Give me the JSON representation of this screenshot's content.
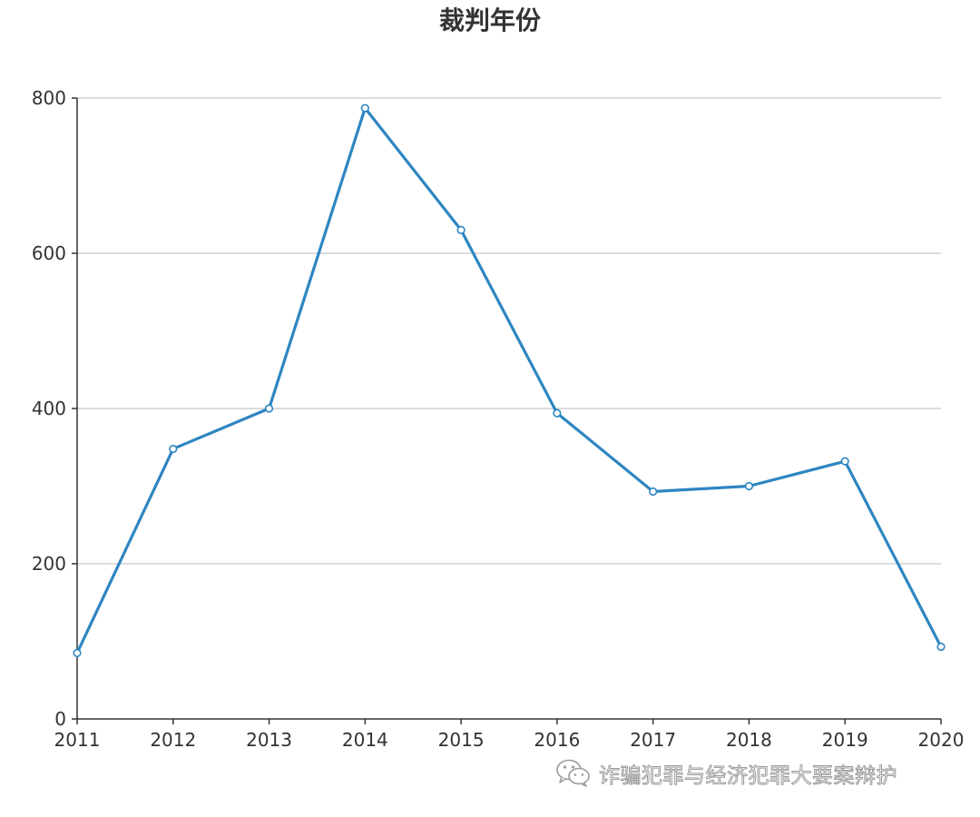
{
  "chart_data": {
    "type": "line",
    "title": "裁判年份",
    "x": [
      "2011",
      "2012",
      "2013",
      "2014",
      "2015",
      "2016",
      "2017",
      "2018",
      "2019",
      "2020"
    ],
    "series": [
      {
        "values": [
          85,
          348,
          400,
          787,
          630,
          394,
          293,
          300,
          332,
          93
        ]
      }
    ],
    "ylim": [
      0,
      800
    ],
    "yticks": [
      0,
      200,
      400,
      600,
      800
    ],
    "xlabel": "",
    "ylabel": "",
    "grid": "horizontal",
    "line_color": "#2e86c1",
    "marker": "hollow-circle"
  },
  "watermark": {
    "icon": "wechat-icon",
    "text": "诈骗犯罪与经济犯罪大要案辩护"
  }
}
